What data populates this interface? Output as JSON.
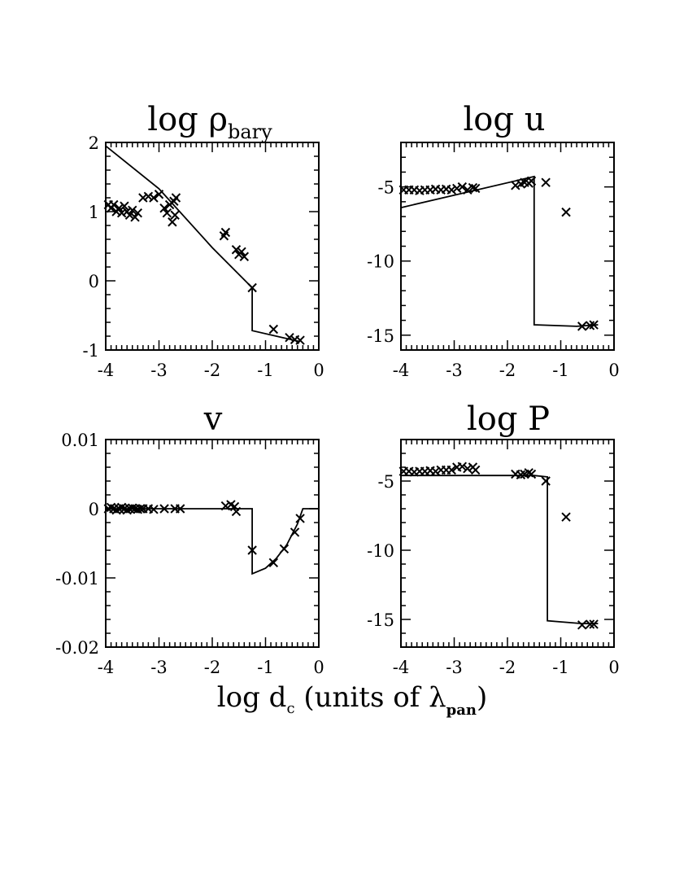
{
  "figure": {
    "xlabel": {
      "main": "log d",
      "sub1": "c",
      "middle": " (units of λ",
      "sub2": "pan",
      "end": ")"
    }
  },
  "chart_data": [
    {
      "type": "scatter",
      "title": {
        "main": "log ρ",
        "sub": "bary"
      },
      "xlim": [
        -4,
        0
      ],
      "ylim": [
        -1,
        2
      ],
      "xticks": [
        "-4",
        "-3",
        "-2",
        "-1",
        "0"
      ],
      "yticks": [
        "-1",
        "0",
        "1",
        "2"
      ],
      "xtick_values": [
        -4,
        -3,
        -2,
        -1,
        0
      ],
      "ytick_values": [
        -1,
        0,
        1,
        2
      ],
      "series": [
        {
          "kind": "line",
          "x": [
            -4,
            -3,
            -2,
            -1.25,
            -1.25,
            -0.35
          ],
          "y": [
            1.95,
            1.33,
            0.48,
            -0.1,
            -0.72,
            -0.88
          ]
        },
        {
          "kind": "points",
          "x": [
            -3.95,
            -3.9,
            -3.85,
            -3.8,
            -3.75,
            -3.7,
            -3.65,
            -3.6,
            -3.55,
            -3.5,
            -3.45,
            -3.4,
            -3.3,
            -3.2,
            -3.1,
            -3.0,
            -2.9,
            -2.85,
            -2.8,
            -2.75,
            -2.72,
            -2.7,
            -2.68,
            -1.78,
            -1.75,
            -1.55,
            -1.5,
            -1.45,
            -1.4,
            -1.25,
            -0.85,
            -0.55,
            -0.45,
            -0.35
          ],
          "y": [
            1.1,
            1.05,
            1.1,
            1.0,
            1.05,
            0.98,
            1.08,
            1.0,
            0.95,
            1.02,
            0.92,
            0.98,
            1.2,
            1.22,
            1.2,
            1.25,
            1.05,
            0.98,
            1.1,
            0.85,
            1.15,
            0.95,
            1.2,
            0.65,
            0.7,
            0.45,
            0.38,
            0.42,
            0.35,
            -0.1,
            -0.7,
            -0.82,
            -0.85,
            -0.86
          ]
        }
      ]
    },
    {
      "type": "scatter",
      "title": {
        "main": "log u",
        "sub": ""
      },
      "xlim": [
        -4,
        0
      ],
      "ylim": [
        -16,
        -2
      ],
      "xticks": [
        "-4",
        "-3",
        "-2",
        "-1",
        "0"
      ],
      "yticks": [
        "-5",
        "-10",
        "-15"
      ],
      "xtick_values": [
        -4,
        -3,
        -2,
        -1,
        0
      ],
      "ytick_values": [
        -5,
        -10,
        -15
      ],
      "series": [
        {
          "kind": "line",
          "x": [
            -4,
            -1.5,
            -1.5,
            -0.7,
            -0.3
          ],
          "y": [
            -6.4,
            -4.3,
            -14.3,
            -14.4,
            -14.3
          ]
        },
        {
          "kind": "points",
          "x": [
            -3.95,
            -3.85,
            -3.75,
            -3.65,
            -3.55,
            -3.45,
            -3.35,
            -3.25,
            -3.15,
            -3.05,
            -2.95,
            -2.85,
            -2.75,
            -2.65,
            -2.6,
            -1.85,
            -1.75,
            -1.68,
            -1.6,
            -1.55,
            -1.28,
            -0.9,
            -0.6,
            -0.45,
            -0.38
          ],
          "y": [
            -5.2,
            -5.2,
            -5.2,
            -5.25,
            -5.2,
            -5.2,
            -5.15,
            -5.2,
            -5.15,
            -5.2,
            -5.1,
            -5.0,
            -5.2,
            -5.05,
            -5.1,
            -4.9,
            -4.8,
            -4.7,
            -4.75,
            -4.6,
            -4.7,
            -6.7,
            -14.4,
            -14.35,
            -14.3
          ]
        }
      ]
    },
    {
      "type": "scatter",
      "title": {
        "main": "v",
        "sub": ""
      },
      "xlim": [
        -4,
        0
      ],
      "ylim": [
        -0.02,
        0.01
      ],
      "xticks": [
        "-4",
        "-3",
        "-2",
        "-1",
        "0"
      ],
      "yticks": [
        "0.01",
        "0",
        "-0.01",
        "-0.02"
      ],
      "xtick_values": [
        -4,
        -3,
        -2,
        -1,
        0
      ],
      "ytick_values": [
        0.01,
        0,
        -0.01,
        -0.02
      ],
      "series": [
        {
          "kind": "line",
          "x": [
            -4,
            -1.25,
            -1.25,
            -1.0,
            -0.8,
            -0.6,
            -0.4,
            -0.3,
            0
          ],
          "y": [
            0,
            0,
            -0.0094,
            -0.0086,
            -0.0072,
            -0.0052,
            -0.0022,
            0,
            0
          ]
        },
        {
          "kind": "points",
          "x": [
            -3.95,
            -3.9,
            -3.85,
            -3.8,
            -3.75,
            -3.7,
            -3.65,
            -3.6,
            -3.55,
            -3.5,
            -3.45,
            -3.4,
            -3.35,
            -3.3,
            -3.2,
            -3.1,
            -2.9,
            -2.7,
            -2.6,
            -1.75,
            -1.65,
            -1.58,
            -1.55,
            -1.25,
            -0.85,
            -0.65,
            -0.45,
            -0.35
          ],
          "y": [
            0,
            0.0002,
            0,
            -0.0002,
            0,
            0.0002,
            0,
            -0.0002,
            0,
            0.0001,
            0,
            -0.0001,
            0,
            0,
            0,
            -0.0001,
            0,
            0,
            0,
            0.0004,
            0.0006,
            0.0003,
            -0.0004,
            -0.006,
            -0.0078,
            -0.0058,
            -0.0034,
            -0.0014
          ]
        }
      ]
    },
    {
      "type": "scatter",
      "title": {
        "main": "log P",
        "sub": ""
      },
      "xlim": [
        -4,
        0
      ],
      "ylim": [
        -17,
        -2
      ],
      "xticks": [
        "-4",
        "-3",
        "-2",
        "-1",
        "0"
      ],
      "yticks": [
        "-5",
        "-10",
        "-15"
      ],
      "xtick_values": [
        -4,
        -3,
        -2,
        -1,
        0
      ],
      "ytick_values": [
        -5,
        -10,
        -15
      ],
      "series": [
        {
          "kind": "line",
          "x": [
            -4,
            -1.5,
            -1.25,
            -1.25,
            -0.6,
            -0.3
          ],
          "y": [
            -4.6,
            -4.6,
            -4.7,
            -15.1,
            -15.3,
            -15.3
          ]
        },
        {
          "kind": "points",
          "x": [
            -3.95,
            -3.85,
            -3.75,
            -3.65,
            -3.55,
            -3.45,
            -3.35,
            -3.25,
            -3.15,
            -3.05,
            -2.95,
            -2.85,
            -2.75,
            -2.65,
            -2.6,
            -1.85,
            -1.75,
            -1.68,
            -1.6,
            -1.55,
            -1.28,
            -0.9,
            -0.6,
            -0.45,
            -0.38
          ],
          "y": [
            -4.3,
            -4.3,
            -4.35,
            -4.3,
            -4.3,
            -4.25,
            -4.3,
            -4.2,
            -4.2,
            -4.2,
            -4.0,
            -3.95,
            -4.1,
            -4.0,
            -4.2,
            -4.5,
            -4.55,
            -4.5,
            -4.4,
            -4.5,
            -5.0,
            -7.6,
            -15.4,
            -15.35,
            -15.35
          ]
        }
      ]
    }
  ]
}
